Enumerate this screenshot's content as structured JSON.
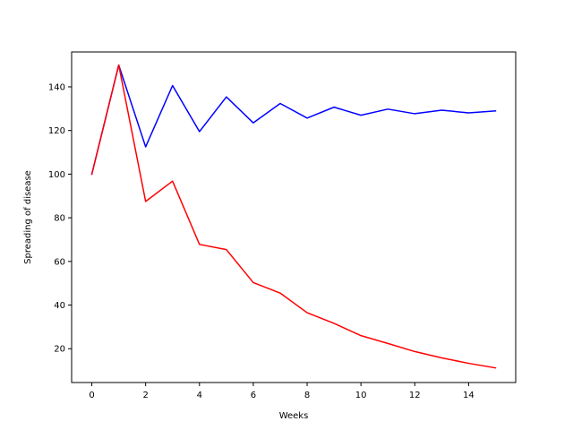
{
  "chart_data": {
    "type": "line",
    "title": "",
    "xlabel": "Weeks",
    "ylabel": "Spreading of disease",
    "xlim": [
      -0.75,
      15.75
    ],
    "ylim": [
      4.5,
      156.0
    ],
    "xticks": [
      0,
      2,
      4,
      6,
      8,
      10,
      12,
      14
    ],
    "yticks": [
      20,
      40,
      60,
      80,
      100,
      120,
      140
    ],
    "grid": false,
    "legend": "none",
    "x": [
      0,
      1,
      2,
      3,
      4,
      5,
      6,
      7,
      8,
      9,
      10,
      11,
      12,
      13,
      14,
      15
    ],
    "series": [
      {
        "color": "#0000ff",
        "values": [
          100,
          150,
          112.5,
          140.6,
          119.5,
          135.4,
          123.5,
          132.4,
          125.7,
          130.7,
          127.0,
          129.8,
          127.7,
          129.3,
          128.1,
          129.0
        ]
      },
      {
        "color": "#ff0000",
        "values": [
          100,
          150,
          87.5,
          96.8,
          67.8,
          65.4,
          50.3,
          45.5,
          36.5,
          31.6,
          26.0,
          22.4,
          18.7,
          15.8,
          13.3,
          11.2
        ]
      }
    ]
  }
}
